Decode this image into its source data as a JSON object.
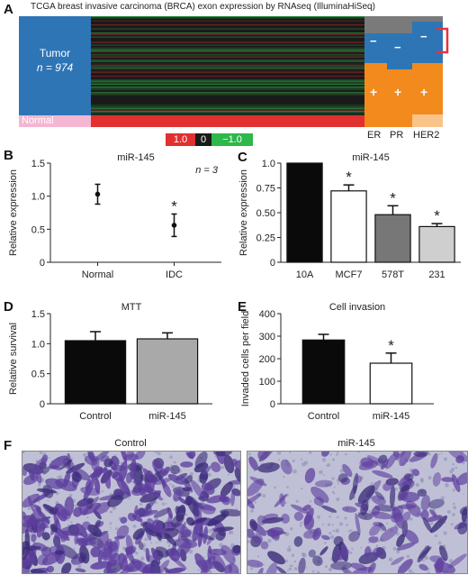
{
  "figure": {
    "panel_letters": [
      "A",
      "B",
      "C",
      "D",
      "E",
      "F"
    ]
  },
  "panel_a": {
    "title": "TCGA breast invasive carcinoma (BRCA) exon expression by RNAseq (IlluminaHiSeq)",
    "tumor_label": "Tumor",
    "tumor_n": "n = 974",
    "normal_label": "Normal",
    "colorbar": [
      "1.0",
      "0",
      "−1.0"
    ],
    "receptor_labels": [
      "ER",
      "PR",
      "HER2"
    ],
    "minus_sign": "−",
    "plus_sign": "+",
    "colors": {
      "tumor": "#2e75b6",
      "normal": "#f4b6d2",
      "heatmap_bg": "#1a1a1a",
      "high": "#e03030",
      "low": "#2db84a",
      "status_positive": "#f28a1e",
      "status_negative": "#2e75b6",
      "status_unknown": "#7a7a7a",
      "her2_light": "#f9c48a",
      "bracket": "#e8333c"
    }
  },
  "chart_data": [
    {
      "panel": "B",
      "type": "scatter",
      "title": "miR-145",
      "annotation": "n = 3",
      "categories": [
        "Normal",
        "IDC"
      ],
      "values": [
        1.03,
        0.56
      ],
      "errors": [
        0.15,
        0.17
      ],
      "significance": [
        "",
        "*"
      ],
      "ylabel": "Relative expression",
      "ylim": [
        0,
        1.5
      ],
      "yticks": [
        "0",
        "0.5",
        "1.0",
        "1.5"
      ],
      "grid": false
    },
    {
      "panel": "C",
      "type": "bar",
      "title": "miR-145",
      "categories": [
        "10A",
        "MCF7",
        "578T",
        "231"
      ],
      "values": [
        1.0,
        0.72,
        0.48,
        0.36
      ],
      "errors": [
        0,
        0.06,
        0.09,
        0.03
      ],
      "significance": [
        "",
        "*",
        "*",
        "*"
      ],
      "bar_colors": [
        "#0a0a0a",
        "#ffffff",
        "#777777",
        "#cfcfcf"
      ],
      "ylabel": "Relative expression",
      "ylim": [
        0,
        1.0
      ],
      "yticks": [
        "0",
        "0.25",
        "0.50",
        "0.75",
        "1.0"
      ],
      "grid": false
    },
    {
      "panel": "D",
      "type": "bar",
      "title": "MTT",
      "categories": [
        "Control",
        "miR-145"
      ],
      "values": [
        1.05,
        1.08
      ],
      "errors": [
        0.15,
        0.1
      ],
      "significance": [
        "",
        ""
      ],
      "bar_colors": [
        "#0a0a0a",
        "#a9a9a9"
      ],
      "ylabel": "Relative survival",
      "ylim": [
        0,
        1.5
      ],
      "yticks": [
        "0",
        "0.5",
        "1.0",
        "1.5"
      ],
      "grid": false
    },
    {
      "panel": "E",
      "type": "bar",
      "title": "Cell invasion",
      "categories": [
        "Control",
        "miR-145"
      ],
      "values": [
        283,
        180
      ],
      "errors": [
        25,
        45
      ],
      "significance": [
        "",
        "*"
      ],
      "bar_colors": [
        "#0a0a0a",
        "#ffffff"
      ],
      "ylabel": "Invaded cells per field",
      "ylim": [
        0,
        400
      ],
      "yticks": [
        "0",
        "100",
        "200",
        "300",
        "400"
      ],
      "grid": false
    }
  ],
  "panel_f": {
    "captions": [
      "Control",
      "miR-145"
    ],
    "colors": {
      "background": "#bfc0d6",
      "stain": "#5d3e9e",
      "dark": "#3a2a78"
    }
  }
}
